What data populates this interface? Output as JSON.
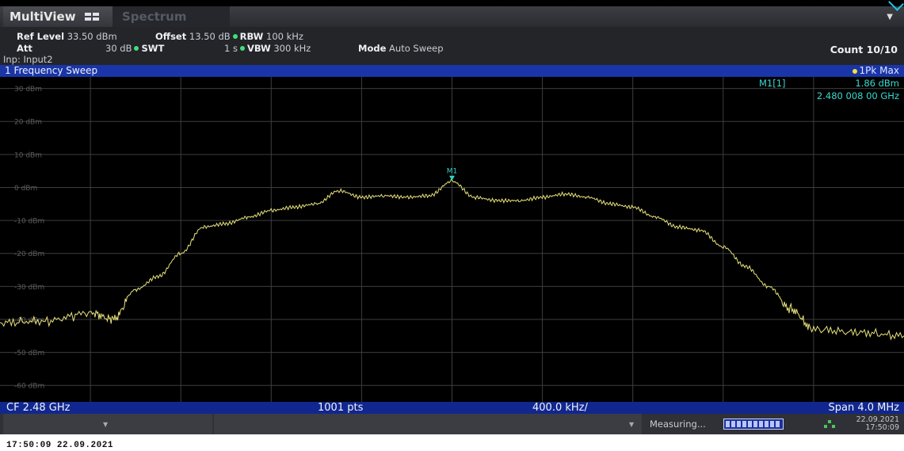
{
  "tabs": {
    "multiview": "MultiView",
    "spectrum": "Spectrum"
  },
  "settings": {
    "ref_level_label": "Ref Level",
    "ref_level_value": "33.50 dBm",
    "offset_label": "Offset",
    "offset_value": "13.50 dB",
    "rbw_label": "RBW",
    "rbw_value": "100 kHz",
    "att_label": "Att",
    "att_value": "30 dB",
    "swt_label": "SWT",
    "swt_value": "1 s",
    "vbw_label": "VBW",
    "vbw_value": "300 kHz",
    "mode_label": "Mode",
    "mode_value": "Auto Sweep",
    "count": "Count 10/10",
    "input": "Inp: Input2"
  },
  "window": {
    "title": "1 Frequency Sweep",
    "trace": "1Pk Max"
  },
  "marker": {
    "name": "M1",
    "readout_label": "M1[1]",
    "level": "1.86 dBm",
    "frequency": "2.480 008 00 GHz"
  },
  "status": {
    "cf": "CF 2.48 GHz",
    "points": "1001 pts",
    "div": "400.0 kHz/",
    "span": "Span 4.0 MHz"
  },
  "bottom": {
    "measuring": "Measuring...",
    "date": "22.09.2021",
    "time": "17:50:09"
  },
  "footer": "17:50:09   22.09.2021",
  "colors": {
    "trace": "#e8e27a",
    "marker": "#2fd4c8",
    "grid": "#3e3e3e",
    "label": "#5c5c5c"
  },
  "chart_data": {
    "type": "line",
    "title": "1 Frequency Sweep",
    "xlabel": "",
    "ylabel": "",
    "x_unit": "GHz",
    "y_unit": "dBm",
    "xlim": [
      2.478,
      2.482
    ],
    "ylim": [
      -65,
      33.5
    ],
    "y_ticks": [
      "30 dBm",
      "20 dBm",
      "10 dBm",
      "0 dBm",
      "-10 dBm",
      "-20 dBm",
      "-30 dBm",
      "-40 dBm",
      "-50 dBm",
      "-60 dBm"
    ],
    "y_tick_values": [
      30,
      20,
      10,
      0,
      -10,
      -20,
      -30,
      -40,
      -50,
      -60
    ],
    "grid": true,
    "series": [
      {
        "name": "1Pk Max",
        "x": [
          2.478,
          2.4782,
          2.4784,
          2.4785,
          2.4786,
          2.4787,
          2.4788,
          2.4789,
          2.479,
          2.4791,
          2.4792,
          2.4793,
          2.4794,
          2.4795,
          2.4796,
          2.4797,
          2.4798,
          2.4799,
          2.48,
          2.4801,
          2.4802,
          2.4803,
          2.4804,
          2.4805,
          2.4806,
          2.4807,
          2.4808,
          2.4809,
          2.481,
          2.4811,
          2.4812,
          2.4813,
          2.4814,
          2.4815,
          2.4816,
          2.4818,
          2.482
        ],
        "y": [
          -41,
          -40.5,
          -38,
          -40,
          -31,
          -27,
          -20,
          -12,
          -11,
          -9,
          -7,
          -6,
          -5,
          -1,
          -3,
          -2.5,
          -3,
          -2.5,
          1.86,
          -3,
          -4,
          -4,
          -3,
          -2,
          -3,
          -5,
          -6,
          -9,
          -12,
          -13,
          -18,
          -24,
          -30,
          -37,
          -43,
          -44,
          -45
        ]
      }
    ],
    "annotations": [
      {
        "label": "M1",
        "x": 2.48,
        "y": 1.86
      }
    ]
  }
}
